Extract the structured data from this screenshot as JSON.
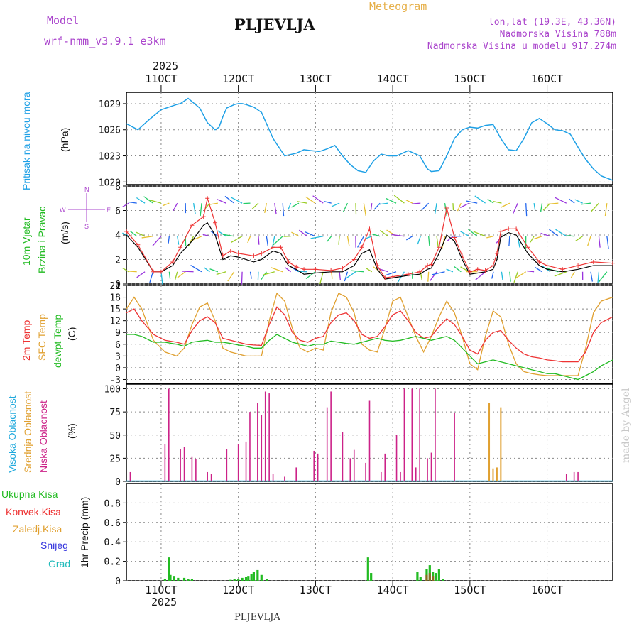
{
  "header": {
    "model_label": "Model",
    "model_name": "wrf-nmm_v3.9.1 e3km",
    "station": "PLJEVLJA",
    "meteogram": "Meteogram",
    "lonlat": "lon,lat (19.3E, 43.36N)",
    "altitude": "Nadmorska Visina 788m",
    "model_altitude": "Nadmorska Visina u modelu 917.274m"
  },
  "footer": {
    "station": "PLJEVLJA",
    "watermark": "made by Angel"
  },
  "colors": {
    "pressure": "#1ea0e6",
    "temp2m": "#ee3333",
    "sfc": "#e0a030",
    "dew": "#22bb22",
    "high_cloud": "#22aadd",
    "mid_cloud": "#e0a030",
    "low_cloud": "#cc2288",
    "precip": "#22bb22",
    "convective": "#ee3333",
    "snow_text": "#3333dd",
    "grad_text": "#22bbbb",
    "wind_text_green": "#22bb22",
    "dir_text": "#aa44cc"
  },
  "time_axis": {
    "year": "2025",
    "days": [
      "11OCT",
      "12OCT",
      "13OCT",
      "14OCT",
      "15OCT",
      "16OCT"
    ],
    "day_values": [
      11,
      12,
      13,
      14,
      15,
      16
    ],
    "range": [
      10.55,
      16.85
    ]
  },
  "labels": {
    "pressure": "Pritisak na nivou mora",
    "pressure_unit": "(hPa)",
    "wind_line1": "10m Vjetar",
    "wind_line2": "Brzina i Pravac",
    "wind_unit": "(m/s)",
    "dir_n": "N",
    "dir_s": "S",
    "dir_w": "W",
    "dir_e": "E",
    "temp_2m": "2m Temp",
    "temp_sfc": "SFC Temp",
    "temp_dew": "dewpt Temp",
    "temp_unit": "(C)",
    "cloud_high": "Visoka Oblacnost",
    "cloud_mid": "Srednja Oblacnost",
    "cloud_low": "Niska Oblacnost",
    "cloud_unit": "(%)",
    "precip_total": "Ukupna Kisa",
    "precip_conv": "Konvek.Kisa",
    "precip_frz": "Zaledj.Kisa",
    "precip_snow": "Snijeg",
    "precip_grad": "Grad",
    "precip_axis": "1hr Precip (mm)"
  },
  "chart_data": [
    {
      "type": "line",
      "title": "Pritisak na nivou mora",
      "ylabel": "(hPa)",
      "ylim": [
        1019.7,
        1030.3
      ],
      "yticks": [
        "1020",
        "1023",
        "1026",
        "1029"
      ],
      "ytick_values": [
        1020,
        1023,
        1026,
        1029
      ],
      "x": [
        10.55,
        10.7,
        10.85,
        11.0,
        11.1,
        11.2,
        11.25,
        11.35,
        11.5,
        11.6,
        11.7,
        11.75,
        11.8,
        11.85,
        11.95,
        12.0,
        12.05,
        12.1,
        12.2,
        12.3,
        12.45,
        12.6,
        12.75,
        12.85,
        12.95,
        13.05,
        13.15,
        13.25,
        13.35,
        13.45,
        13.55,
        13.65,
        13.75,
        13.85,
        13.95,
        14.05,
        14.2,
        14.35,
        14.45,
        14.5,
        14.6,
        14.7,
        14.8,
        14.9,
        15.0,
        15.1,
        15.2,
        15.3,
        15.4,
        15.5,
        15.6,
        15.7,
        15.8,
        15.9,
        16.0,
        16.1,
        16.2,
        16.3,
        16.4,
        16.5,
        16.6,
        16.7,
        16.85
      ],
      "series": [
        {
          "name": "pressure",
          "values": [
            1026.7,
            1026.0,
            1027.2,
            1028.3,
            1028.6,
            1028.9,
            1029.0,
            1029.6,
            1028.5,
            1026.8,
            1026.0,
            1026.3,
            1027.5,
            1028.5,
            1028.9,
            1029.0,
            1029.0,
            1028.9,
            1028.6,
            1028.0,
            1025.0,
            1023.0,
            1023.3,
            1023.7,
            1023.6,
            1023.5,
            1023.8,
            1024.2,
            1023.0,
            1022.0,
            1021.3,
            1021.1,
            1022.4,
            1023.2,
            1023.0,
            1023.0,
            1023.6,
            1023.0,
            1021.5,
            1021.2,
            1021.3,
            1023.0,
            1025.0,
            1026.0,
            1026.3,
            1026.2,
            1026.5,
            1026.6,
            1025.0,
            1023.7,
            1023.6,
            1025.0,
            1026.8,
            1027.3,
            1026.7,
            1026.0,
            1025.9,
            1025.5,
            1024.0,
            1022.6,
            1021.5,
            1020.7,
            1020.2
          ]
        }
      ]
    },
    {
      "type": "line",
      "title": "10m Vjetar Brzina i Pravac",
      "ylabel": "(m/s)",
      "ylim": [
        0,
        8
      ],
      "yticks": [
        "0",
        "2",
        "4",
        "6",
        "8"
      ],
      "ytick_values": [
        0,
        2,
        4,
        6,
        8
      ],
      "x": [
        10.55,
        10.7,
        10.9,
        11.0,
        11.15,
        11.25,
        11.4,
        11.55,
        11.6,
        11.7,
        11.8,
        11.9,
        12.0,
        12.2,
        12.3,
        12.45,
        12.55,
        12.65,
        12.75,
        12.85,
        13.0,
        13.2,
        13.35,
        13.5,
        13.6,
        13.7,
        13.8,
        13.9,
        14.0,
        14.2,
        14.35,
        14.45,
        14.5,
        14.6,
        14.7,
        14.8,
        14.9,
        15.0,
        15.1,
        15.2,
        15.3,
        15.35,
        15.4,
        15.5,
        15.6,
        15.75,
        15.9,
        16.0,
        16.2,
        16.4,
        16.6,
        16.85
      ],
      "series": [
        {
          "name": "speed",
          "values": [
            4.0,
            3.0,
            1.0,
            1.0,
            1.5,
            2.5,
            3.5,
            4.8,
            5.0,
            4.0,
            2.0,
            2.3,
            2.2,
            1.8,
            2.0,
            2.7,
            2.5,
            1.5,
            1.2,
            0.8,
            0.9,
            1.0,
            1.0,
            1.5,
            2.5,
            2.8,
            1.2,
            0.4,
            0.5,
            0.7,
            0.8,
            1.2,
            1.3,
            2.5,
            4.0,
            3.5,
            2.0,
            0.8,
            0.9,
            1.0,
            1.2,
            2.0,
            3.8,
            4.2,
            4.0,
            2.5,
            1.5,
            1.2,
            1.0,
            1.2,
            1.5,
            1.5
          ]
        },
        {
          "name": "gust",
          "values": [
            4.3,
            3.2,
            1.0,
            1.0,
            1.8,
            3.0,
            4.8,
            5.5,
            7.0,
            5.0,
            2.3,
            2.7,
            2.5,
            2.3,
            2.5,
            3.0,
            3.0,
            1.8,
            1.4,
            1.2,
            1.2,
            1.1,
            1.3,
            2.0,
            3.0,
            4.5,
            1.5,
            0.5,
            0.6,
            0.8,
            1.0,
            1.5,
            1.6,
            3.0,
            6.2,
            3.8,
            2.3,
            1.0,
            1.2,
            1.1,
            1.5,
            2.5,
            4.3,
            4.5,
            4.5,
            3.0,
            1.8,
            1.5,
            1.2,
            1.5,
            1.8,
            1.7
          ]
        }
      ]
    },
    {
      "type": "line",
      "title": "2m Temp / SFC Temp / dewpt Temp",
      "ylabel": "(C)",
      "ylim": [
        -4,
        21
      ],
      "yticks": [
        "-3",
        "0",
        "3",
        "6",
        "9",
        "12",
        "15",
        "18",
        "21"
      ],
      "ytick_values": [
        -3,
        0,
        3,
        6,
        9,
        12,
        15,
        18,
        21
      ],
      "x": [
        10.55,
        10.65,
        10.75,
        10.9,
        11.05,
        11.2,
        11.3,
        11.4,
        11.5,
        11.6,
        11.7,
        11.8,
        11.9,
        12.0,
        12.1,
        12.2,
        12.3,
        12.4,
        12.5,
        12.6,
        12.7,
        12.8,
        12.9,
        13.0,
        13.1,
        13.2,
        13.3,
        13.4,
        13.5,
        13.6,
        13.7,
        13.8,
        13.9,
        14.0,
        14.1,
        14.2,
        14.3,
        14.4,
        14.5,
        14.6,
        14.7,
        14.8,
        14.9,
        15.0,
        15.1,
        15.2,
        15.3,
        15.4,
        15.5,
        15.6,
        15.7,
        15.8,
        15.9,
        16.0,
        16.1,
        16.2,
        16.3,
        16.4,
        16.5,
        16.6,
        16.7,
        16.85
      ],
      "series": [
        {
          "name": "2m",
          "values": [
            14.0,
            15.0,
            12.0,
            8.5,
            7.0,
            6.5,
            6.0,
            9.5,
            12.0,
            13.0,
            11.5,
            7.5,
            7.0,
            6.5,
            6.0,
            5.8,
            5.7,
            11.0,
            15.5,
            13.5,
            9.0,
            7.0,
            6.5,
            7.5,
            8.0,
            11.5,
            13.5,
            14.0,
            12.0,
            8.5,
            7.5,
            8.0,
            10.5,
            13.5,
            14.5,
            12.0,
            9.0,
            7.5,
            8.0,
            10.5,
            12.5,
            11.0,
            8.0,
            4.5,
            3.5,
            7.0,
            9.0,
            9.5,
            7.0,
            5.0,
            3.5,
            2.8,
            2.5,
            2.0,
            1.8,
            1.5,
            1.5,
            1.5,
            4.0,
            9.0,
            11.5,
            13.0
          ]
        },
        {
          "name": "sfc",
          "values": [
            15.0,
            18.0,
            15.0,
            7.0,
            4.0,
            3.0,
            5.0,
            11.0,
            15.5,
            16.5,
            12.0,
            5.0,
            4.0,
            3.5,
            3.0,
            3.0,
            3.0,
            12.0,
            19.0,
            17.0,
            10.0,
            5.0,
            4.0,
            5.0,
            4.5,
            14.0,
            19.0,
            18.0,
            14.0,
            6.0,
            4.5,
            4.0,
            10.0,
            17.0,
            18.0,
            13.0,
            8.0,
            4.0,
            8.0,
            13.0,
            17.0,
            14.0,
            8.0,
            1.0,
            -0.5,
            8.0,
            14.5,
            13.0,
            6.0,
            1.0,
            -1.0,
            -1.5,
            -1.8,
            -2.0,
            -2.0,
            -2.0,
            -2.0,
            -2.0,
            5.0,
            14.0,
            17.0,
            18.0
          ]
        },
        {
          "name": "dew",
          "values": [
            8.5,
            8.5,
            8.0,
            6.5,
            6.5,
            6.0,
            5.5,
            6.5,
            6.8,
            7.0,
            6.5,
            6.5,
            6.2,
            5.8,
            5.5,
            5.0,
            5.0,
            7.0,
            8.5,
            7.5,
            6.5,
            6.0,
            5.5,
            6.0,
            6.0,
            6.8,
            6.5,
            6.2,
            6.0,
            6.5,
            7.0,
            7.5,
            7.0,
            6.8,
            7.0,
            7.5,
            8.0,
            7.5,
            7.0,
            7.5,
            8.0,
            7.0,
            5.0,
            3.0,
            1.0,
            1.5,
            2.0,
            1.5,
            1.0,
            0.5,
            0.0,
            -0.5,
            -1.0,
            -1.5,
            -1.5,
            -2.0,
            -2.5,
            -3.0,
            -2.0,
            -1.0,
            0.5,
            2.0
          ]
        }
      ]
    },
    {
      "type": "bar",
      "title": "Oblacnost",
      "ylabel": "(%)",
      "ylim": [
        0,
        105
      ],
      "yticks": [
        "0",
        "25",
        "50",
        "75",
        "100"
      ],
      "ytick_values": [
        0,
        25,
        50,
        75,
        100
      ],
      "x_low": [
        10.6,
        11.05,
        11.1,
        11.25,
        11.3,
        11.4,
        11.45,
        11.6,
        11.65,
        11.85,
        12.0,
        12.1,
        12.15,
        12.25,
        12.3,
        12.35,
        12.4,
        12.45,
        12.6,
        12.75,
        12.98,
        13.03,
        13.15,
        13.2,
        13.35,
        13.45,
        13.5,
        13.65,
        13.7,
        13.85,
        13.9,
        14.05,
        14.1,
        14.15,
        14.25,
        14.3,
        14.35,
        14.45,
        14.5,
        14.55,
        14.8,
        16.25,
        16.35,
        16.4
      ],
      "low": [
        10,
        40,
        100,
        35,
        37,
        27,
        24,
        10,
        8,
        35,
        40,
        43,
        75,
        85,
        72,
        97,
        95,
        8,
        5,
        15,
        33,
        30,
        80,
        97,
        53,
        25,
        34,
        20,
        87,
        10,
        30,
        50,
        10,
        100,
        100,
        15,
        100,
        25,
        31,
        100,
        74,
        8,
        10,
        10
      ],
      "x_mid": [
        15.25,
        15.3,
        15.35,
        15.4
      ],
      "mid": [
        85,
        14,
        15,
        80
      ]
    },
    {
      "type": "bar",
      "title": "1hr Precip",
      "ylabel": "1hr Precip (mm)",
      "ylim": [
        0,
        1.0
      ],
      "yticks": [
        "0",
        "0.2",
        "0.4",
        "0.6",
        "0.8"
      ],
      "ytick_values": [
        0,
        0.2,
        0.4,
        0.6,
        0.8
      ],
      "x": [
        11.05,
        11.1,
        11.12,
        11.17,
        11.22,
        11.3,
        11.35,
        11.4,
        11.9,
        11.95,
        12.0,
        12.05,
        12.1,
        12.13,
        12.17,
        12.2,
        12.25,
        12.3,
        12.37,
        13.68,
        13.72,
        14.32,
        14.36,
        14.44,
        14.48,
        14.52,
        14.56,
        14.6,
        14.65
      ],
      "values": [
        0.02,
        0.24,
        0.06,
        0.05,
        0.03,
        0.03,
        0.02,
        0.02,
        0.01,
        0.02,
        0.02,
        0.03,
        0.04,
        0.05,
        0.07,
        0.09,
        0.11,
        0.06,
        0.02,
        0.24,
        0.08,
        0.09,
        0.04,
        0.12,
        0.16,
        0.09,
        0.08,
        0.12,
        0.02
      ],
      "conv_x": [
        14.44,
        14.48,
        14.52
      ],
      "conv_values": [
        0.06,
        0.08,
        0.05
      ]
    }
  ]
}
